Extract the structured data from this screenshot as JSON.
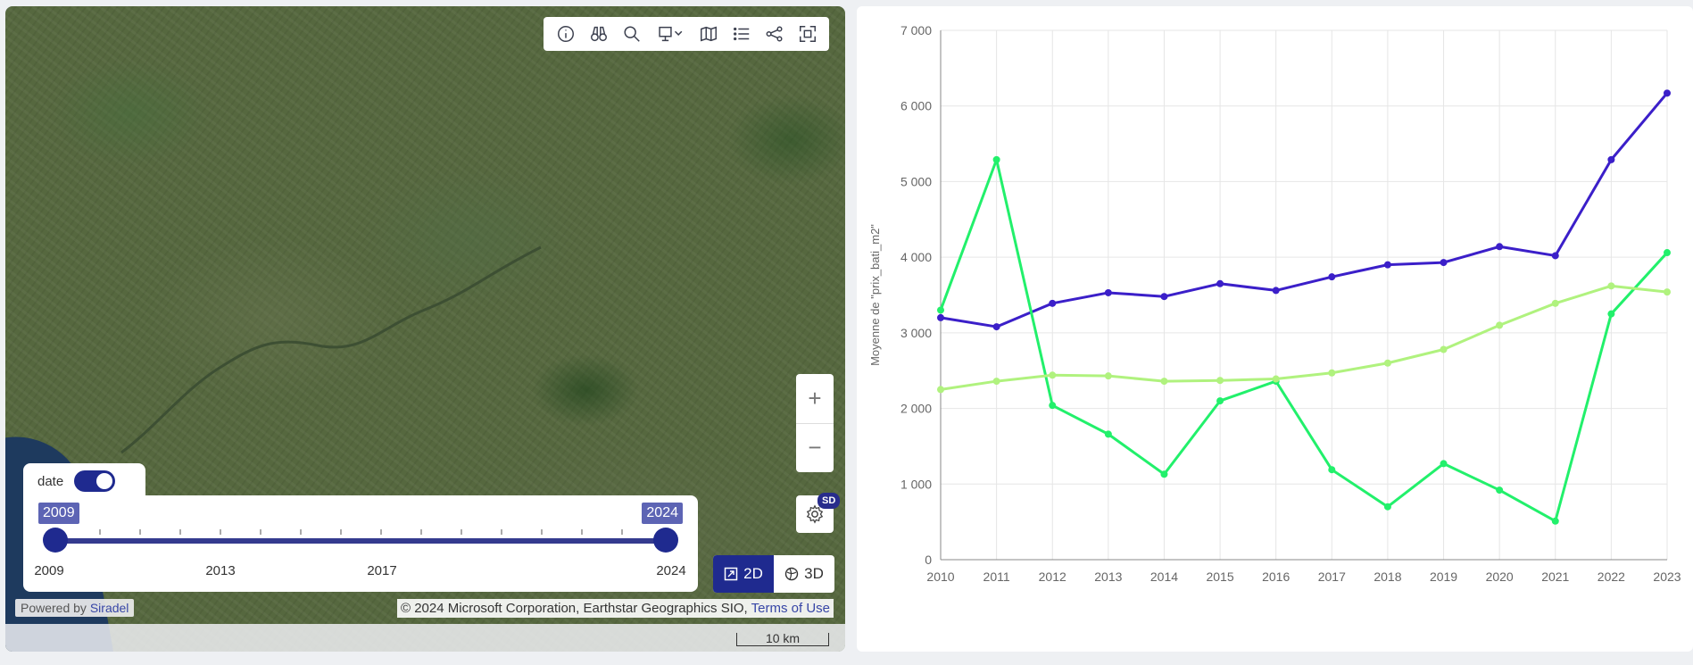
{
  "map": {
    "toolbar": [
      "info-icon",
      "binoculars-icon",
      "search-icon",
      "basemap-icon",
      "layers-icon",
      "legend-icon",
      "share-icon",
      "fullscreen-icon"
    ],
    "zoom": {
      "in": "+",
      "out": "−"
    },
    "sd_badge": "SD",
    "dim": {
      "d2": "2D",
      "d3": "3D"
    },
    "timeline": {
      "toggle_label": "date",
      "start_chip": "2009",
      "end_chip": "2024",
      "labels": [
        "2009",
        "2013",
        "2017",
        "2024"
      ]
    },
    "powered_prefix": "Powered by",
    "powered_brand": "Siradel",
    "attribution": "© 2024 Microsoft Corporation, Earthstar Geographics SIO,",
    "terms": "Terms of Use",
    "scale": "10 km"
  },
  "chart_data": {
    "type": "line",
    "ylabel": "Moyenne de \"prix_bati_m2\"",
    "ylim": [
      0,
      7000
    ],
    "yticks": [
      "0",
      "1 000",
      "2 000",
      "3 000",
      "4 000",
      "5 000",
      "6 000",
      "7 000"
    ],
    "categories": [
      "2010",
      "2011",
      "2012",
      "2013",
      "2014",
      "2015",
      "2016",
      "2017",
      "2018",
      "2019",
      "2020",
      "2021",
      "2022",
      "2023"
    ],
    "grid": true,
    "series": [
      {
        "color": "#3b1fc9",
        "values": [
          3200,
          3080,
          3390,
          3530,
          3480,
          3650,
          3560,
          3740,
          3900,
          3930,
          4140,
          4020,
          5290,
          6170
        ]
      },
      {
        "color": "#22f06b",
        "values": [
          3300,
          5290,
          2040,
          1660,
          1130,
          2100,
          2360,
          1190,
          700,
          1270,
          920,
          510,
          3250,
          4060
        ]
      },
      {
        "color": "#b0f27e",
        "values": [
          2250,
          2360,
          2440,
          2430,
          2360,
          2370,
          2390,
          2470,
          2600,
          2780,
          3100,
          3390,
          3620,
          3540
        ]
      }
    ]
  }
}
